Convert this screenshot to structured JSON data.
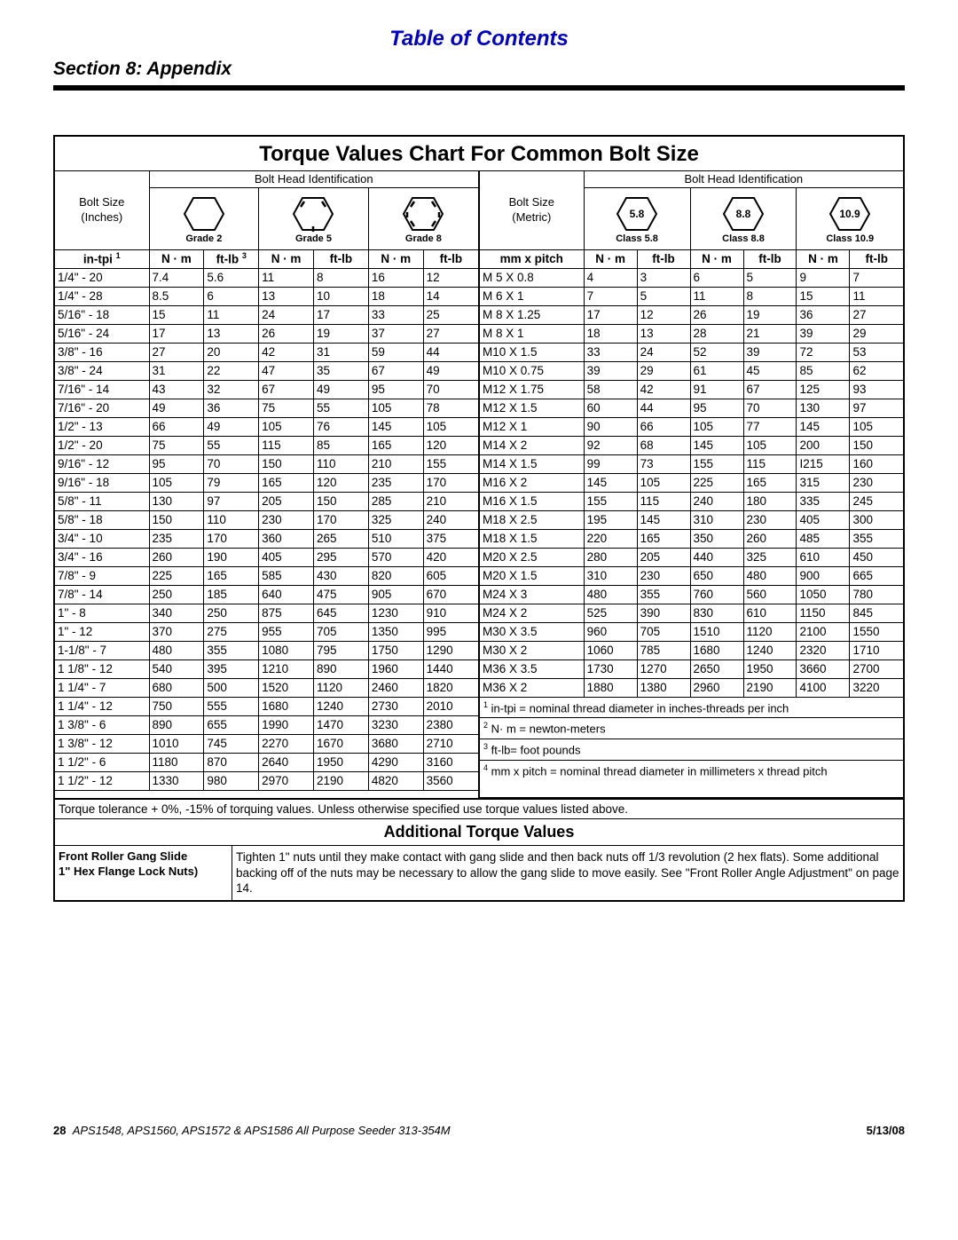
{
  "header": {
    "toc": "Table of Contents",
    "section": "Section 8: Appendix"
  },
  "chart": {
    "title": "Torque Values Chart For Common Bolt Size",
    "identLabel": "Bolt Head Identification",
    "inch": {
      "boltSizeLabel1": "Bolt Size",
      "boltSizeLabel2": "(Inches)",
      "grades": [
        "Grade 2",
        "Grade 5",
        "Grade 8"
      ],
      "sizeHead": "in-tpi",
      "unitHeads": [
        "N · m",
        "ft-lb",
        "N · m",
        "ft-lb",
        "N · m",
        "ft-lb"
      ],
      "rows": [
        [
          "1/4\" - 20",
          "7.4",
          "5.6",
          "11",
          "8",
          "16",
          "12"
        ],
        [
          "1/4\" - 28",
          "8.5",
          "6",
          "13",
          "10",
          "18",
          "14"
        ],
        [
          "5/16\" - 18",
          "15",
          "11",
          "24",
          "17",
          "33",
          "25"
        ],
        [
          "5/16\" - 24",
          "17",
          "13",
          "26",
          "19",
          "37",
          "27"
        ],
        [
          "3/8\" - 16",
          "27",
          "20",
          "42",
          "31",
          "59",
          "44"
        ],
        [
          "3/8\" - 24",
          "31",
          "22",
          "47",
          "35",
          "67",
          "49"
        ],
        [
          "7/16\" - 14",
          "43",
          "32",
          "67",
          "49",
          "95",
          "70"
        ],
        [
          "7/16\" - 20",
          "49",
          "36",
          "75",
          "55",
          "105",
          "78"
        ],
        [
          "1/2\" - 13",
          "66",
          "49",
          "105",
          "76",
          "145",
          "105"
        ],
        [
          "1/2\" - 20",
          "75",
          "55",
          "115",
          "85",
          "165",
          "120"
        ],
        [
          "9/16\" - 12",
          "95",
          "70",
          "150",
          "110",
          "210",
          "155"
        ],
        [
          "9/16\" - 18",
          "105",
          "79",
          "165",
          "120",
          "235",
          "170"
        ],
        [
          "5/8\" - 11",
          "130",
          "97",
          "205",
          "150",
          "285",
          "210"
        ],
        [
          "5/8\" - 18",
          "150",
          "110",
          "230",
          "170",
          "325",
          "240"
        ],
        [
          "3/4\" - 10",
          "235",
          "170",
          "360",
          "265",
          "510",
          "375"
        ],
        [
          "3/4\" - 16",
          "260",
          "190",
          "405",
          "295",
          "570",
          "420"
        ],
        [
          "7/8\" - 9",
          "225",
          "165",
          "585",
          "430",
          "820",
          "605"
        ],
        [
          "7/8\" - 14",
          "250",
          "185",
          "640",
          "475",
          "905",
          "670"
        ],
        [
          "1\" - 8",
          "340",
          "250",
          "875",
          "645",
          "1230",
          "910"
        ],
        [
          "1\" - 12",
          "370",
          "275",
          "955",
          "705",
          "1350",
          "995"
        ],
        [
          "1-1/8\" - 7",
          "480",
          "355",
          "1080",
          "795",
          "1750",
          "1290"
        ],
        [
          "1 1/8\" - 12",
          "540",
          "395",
          "1210",
          "890",
          "1960",
          "1440"
        ],
        [
          "1 1/4\" - 7",
          "680",
          "500",
          "1520",
          "1120",
          "2460",
          "1820"
        ],
        [
          "1 1/4\" - 12",
          "750",
          "555",
          "1680",
          "1240",
          "2730",
          "2010"
        ],
        [
          "1 3/8\" - 6",
          "890",
          "655",
          "1990",
          "1470",
          "3230",
          "2380"
        ],
        [
          "1 3/8\" - 12",
          "1010",
          "745",
          "2270",
          "1670",
          "3680",
          "2710"
        ],
        [
          "1 1/2\" - 6",
          "1180",
          "870",
          "2640",
          "1950",
          "4290",
          "3160"
        ],
        [
          "1 1/2\" - 12",
          "1330",
          "980",
          "2970",
          "2190",
          "4820",
          "3560"
        ]
      ]
    },
    "metric": {
      "boltSizeLabel1": "Bolt Size",
      "boltSizeLabel2": "(Metric)",
      "classLabels": [
        "5.8",
        "8.8",
        "10.9"
      ],
      "classNames": [
        "Class 5.8",
        "Class 8.8",
        "Class 10.9"
      ],
      "sizeHead": "mm x pitch",
      "unitHeads": [
        "N · m",
        "ft-lb",
        "N · m",
        "ft-lb",
        "N · m",
        "ft-lb"
      ],
      "rows": [
        [
          "M 5 X 0.8",
          "4",
          "3",
          "6",
          "5",
          "9",
          "7"
        ],
        [
          "M 6 X 1",
          "7",
          "5",
          "11",
          "8",
          "15",
          "11"
        ],
        [
          "M 8 X 1.25",
          "17",
          "12",
          "26",
          "19",
          "36",
          "27"
        ],
        [
          "M 8 X 1",
          "18",
          "13",
          "28",
          "21",
          "39",
          "29"
        ],
        [
          "M10 X 1.5",
          "33",
          "24",
          "52",
          "39",
          "72",
          "53"
        ],
        [
          "M10 X 0.75",
          "39",
          "29",
          "61",
          "45",
          "85",
          "62"
        ],
        [
          "M12 X 1.75",
          "58",
          "42",
          "91",
          "67",
          "125",
          "93"
        ],
        [
          "M12 X 1.5",
          "60",
          "44",
          "95",
          "70",
          "130",
          "97"
        ],
        [
          "M12 X 1",
          "90",
          "66",
          "105",
          "77",
          "145",
          "105"
        ],
        [
          "M14 X 2",
          "92",
          "68",
          "145",
          "105",
          "200",
          "150"
        ],
        [
          "M14 X 1.5",
          "99",
          "73",
          "155",
          "115",
          "I215",
          "160"
        ],
        [
          "M16 X 2",
          "145",
          "105",
          "225",
          "165",
          "315",
          "230"
        ],
        [
          "M16 X 1.5",
          "155",
          "115",
          "240",
          "180",
          "335",
          "245"
        ],
        [
          "M18 X 2.5",
          "195",
          "145",
          "310",
          "230",
          "405",
          "300"
        ],
        [
          "M18 X 1.5",
          "220",
          "165",
          "350",
          "260",
          "485",
          "355"
        ],
        [
          "M20 X 2.5",
          "280",
          "205",
          "440",
          "325",
          "610",
          "450"
        ],
        [
          "M20 X 1.5",
          "310",
          "230",
          "650",
          "480",
          "900",
          "665"
        ],
        [
          "M24 X 3",
          "480",
          "355",
          "760",
          "560",
          "1050",
          "780"
        ],
        [
          "M24 X 2",
          "525",
          "390",
          "830",
          "610",
          "1150",
          "845"
        ],
        [
          "M30 X 3.5",
          "960",
          "705",
          "1510",
          "1120",
          "2100",
          "1550"
        ],
        [
          "M30 X 2",
          "1060",
          "785",
          "1680",
          "1240",
          "2320",
          "1710"
        ],
        [
          "M36 X 3.5",
          "1730",
          "1270",
          "2650",
          "1950",
          "3660",
          "2700"
        ],
        [
          "M36 X 2",
          "1880",
          "1380",
          "2960",
          "2190",
          "4100",
          "3220"
        ]
      ],
      "notes": [
        "in-tpi = nominal thread diameter in inches-threads per inch",
        "N· m = newton-meters",
        "ft-lb= foot pounds",
        "mm x pitch = nominal thread diameter in millimeters x thread pitch"
      ]
    },
    "tolerance": "Torque tolerance + 0%, -15% of torquing values. Unless otherwise specified use torque values listed above.",
    "additional": {
      "title": "Additional Torque Values",
      "leftLine1": "Front Roller Gang Slide",
      "leftLine2": "1\" Hex Flange Lock Nuts)",
      "right": "Tighten 1\" nuts until they make contact with gang slide and then back nuts off 1/3 revolution (2 hex flats). Some additional backing off of the nuts may be necessary to allow the gang slide to move easily. See \"Front Roller Angle Adjustment\" on page 14."
    }
  },
  "footer": {
    "page": "28",
    "mid": "APS1548, APS1560, APS1572 & APS1586 All Purpose Seeder   313-354M",
    "date": "5/13/08"
  }
}
